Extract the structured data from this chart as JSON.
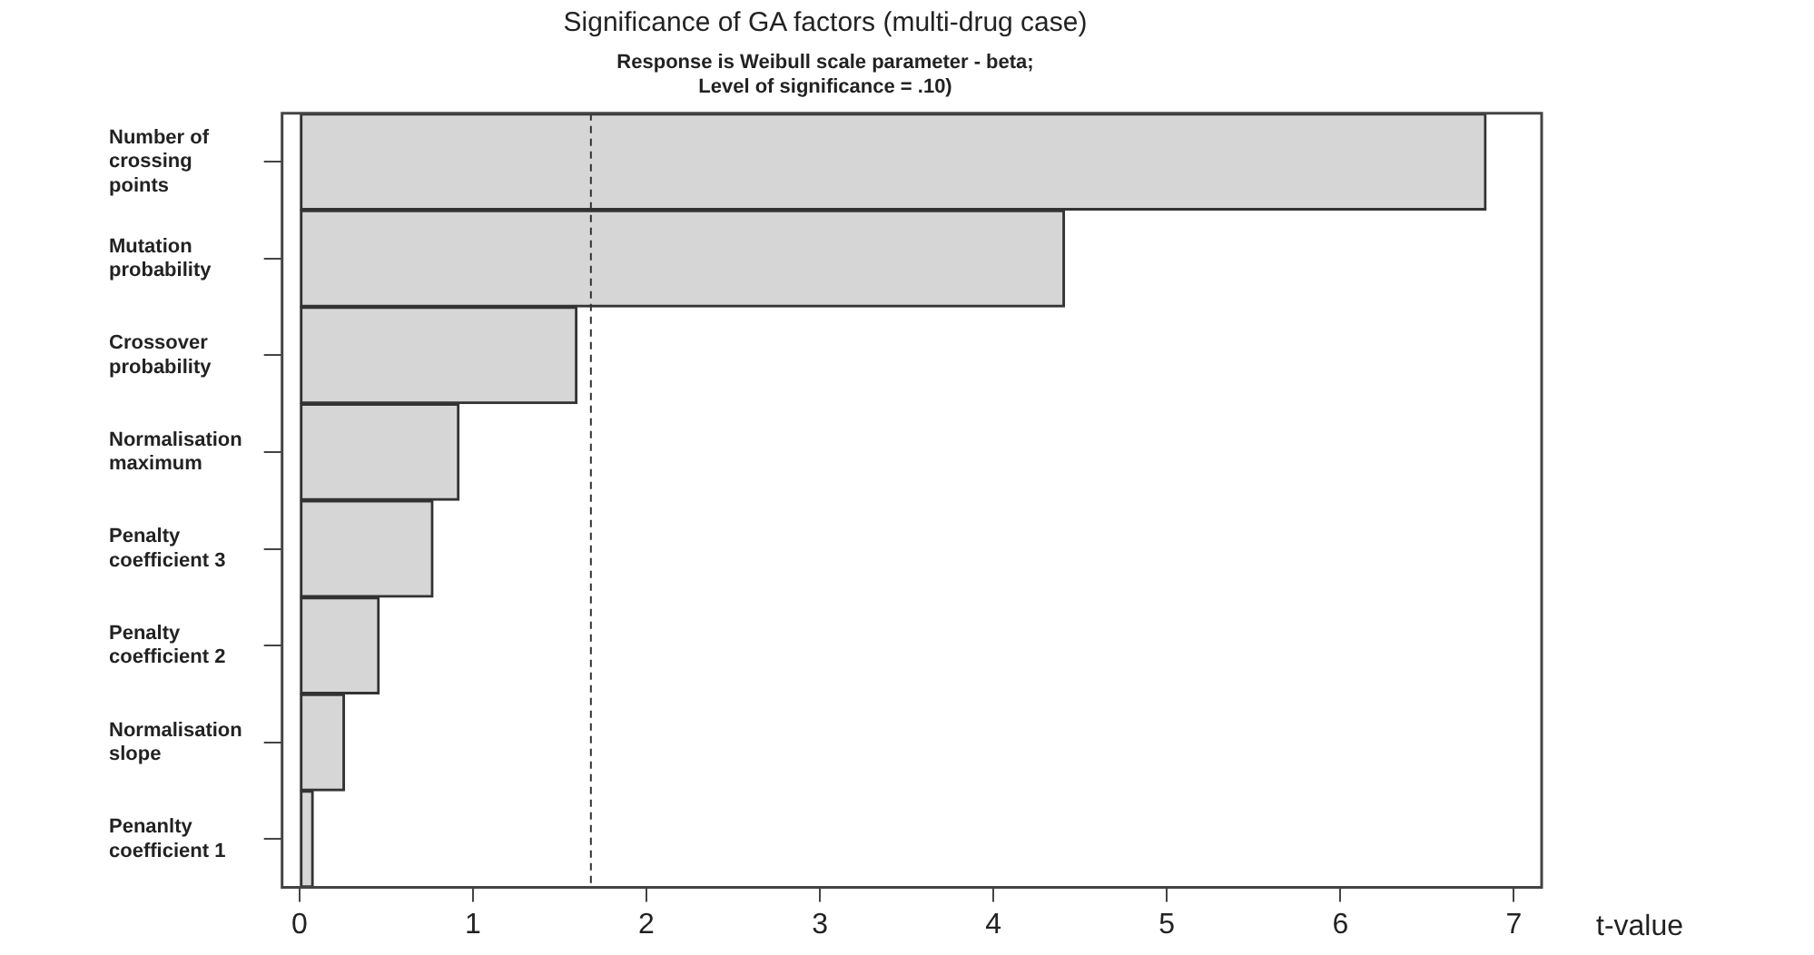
{
  "chart_data": {
    "type": "bar",
    "orientation": "horizontal",
    "title": "Significance of GA factors (multi-drug case)",
    "subtitle": "Response is Weibull scale parameter - beta;\nLevel of significance = .10)",
    "xlabel": "t-value",
    "categories": [
      "Number of crossing points",
      "Mutation probability",
      "Crossover probability",
      "Normalisation maximum",
      "Penalty coefficient 3",
      "Penalty coefficient 2",
      "Normalisation slope",
      "Penanlty coefficient 1"
    ],
    "values": [
      6.84,
      4.41,
      1.6,
      0.92,
      0.77,
      0.46,
      0.26,
      0.08
    ],
    "color": "#d6d6d6",
    "xlim": [
      -0.1,
      7.16
    ],
    "xticks": [
      0,
      1,
      2,
      3,
      4,
      5,
      6,
      7
    ],
    "ref_lines": [
      {
        "axis": "x",
        "value": 1.68,
        "line_style": "dashed"
      }
    ],
    "grid": false,
    "legend": false
  }
}
